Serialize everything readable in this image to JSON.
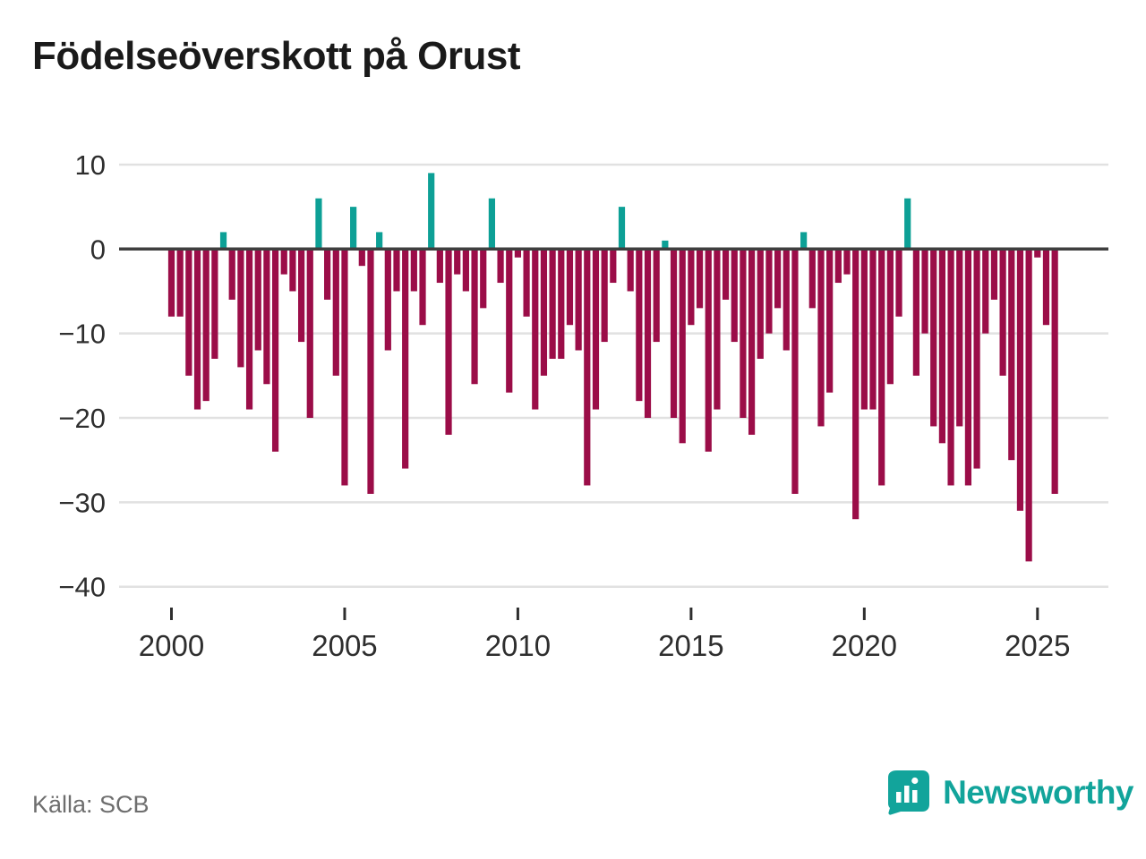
{
  "title": "Födelseöverskott på Orust",
  "source": "Källa: SCB",
  "branding": {
    "name": "Newsworthy",
    "logo_icon": "bar-chart-pin-icon"
  },
  "colors": {
    "negative_bar": "#9b0d48",
    "positive_bar": "#0da096",
    "brand_teal": "#12a49b",
    "grid": "#e1e1e1",
    "zero_line": "#3f3f3f",
    "tick_text": "#2e2e2e"
  },
  "chart_data": {
    "type": "bar",
    "title": "Födelseöverskott på Orust",
    "xlabel": "",
    "ylabel": "",
    "ylim": [
      -40,
      10
    ],
    "grid": "horizontal",
    "legend": "none",
    "unit": "persons per quarter",
    "y_ticks": [
      10,
      0,
      -10,
      -20,
      -30,
      -40
    ],
    "x_ticks": [
      {
        "label": "2000",
        "quarter_index": 0
      },
      {
        "label": "2005",
        "quarter_index": 20
      },
      {
        "label": "2010",
        "quarter_index": 40
      },
      {
        "label": "2015",
        "quarter_index": 60
      },
      {
        "label": "2020",
        "quarter_index": 80
      },
      {
        "label": "2025",
        "quarter_index": 100
      }
    ],
    "series_note": "quarterly values 2000Q1-2025Q3; positive values teal, negative crimson",
    "years": [
      {
        "year": 2000,
        "values": [
          -8,
          -8,
          -15,
          -19
        ]
      },
      {
        "year": 2001,
        "values": [
          -18,
          -13,
          2,
          -6
        ]
      },
      {
        "year": 2002,
        "values": [
          -14,
          -19,
          -12,
          -16
        ]
      },
      {
        "year": 2003,
        "values": [
          -24,
          -3,
          -5,
          -11
        ]
      },
      {
        "year": 2004,
        "values": [
          -20,
          6,
          -6,
          -15
        ]
      },
      {
        "year": 2005,
        "values": [
          -28,
          5,
          -2,
          -29
        ]
      },
      {
        "year": 2006,
        "values": [
          2,
          -12,
          -5,
          -26
        ]
      },
      {
        "year": 2007,
        "values": [
          -5,
          -9,
          9,
          -4
        ]
      },
      {
        "year": 2008,
        "values": [
          -22,
          -3,
          -5,
          -16
        ]
      },
      {
        "year": 2009,
        "values": [
          -7,
          6,
          -4,
          -17
        ]
      },
      {
        "year": 2010,
        "values": [
          -1,
          -8,
          -19,
          -15
        ]
      },
      {
        "year": 2011,
        "values": [
          -13,
          -13,
          -9,
          -12
        ]
      },
      {
        "year": 2012,
        "values": [
          -28,
          -19,
          -11,
          -4
        ]
      },
      {
        "year": 2013,
        "values": [
          5,
          -5,
          -18,
          -20
        ]
      },
      {
        "year": 2014,
        "values": [
          -11,
          1,
          -20,
          -23
        ]
      },
      {
        "year": 2015,
        "values": [
          -9,
          -7,
          -24,
          -19
        ]
      },
      {
        "year": 2016,
        "values": [
          -6,
          -11,
          -20,
          -22
        ]
      },
      {
        "year": 2017,
        "values": [
          -13,
          -10,
          -7,
          -12
        ]
      },
      {
        "year": 2018,
        "values": [
          -29,
          2,
          -7,
          -21
        ]
      },
      {
        "year": 2019,
        "values": [
          -17,
          -4,
          -3,
          -32
        ]
      },
      {
        "year": 2020,
        "values": [
          -19,
          -19,
          -28,
          -16
        ]
      },
      {
        "year": 2021,
        "values": [
          -8,
          6,
          -15,
          -10
        ]
      },
      {
        "year": 2022,
        "values": [
          -21,
          -23,
          -28,
          -21
        ]
      },
      {
        "year": 2023,
        "values": [
          -28,
          -26,
          -10,
          -6
        ]
      },
      {
        "year": 2024,
        "values": [
          -15,
          -25,
          -31,
          -37
        ]
      },
      {
        "year": 2025,
        "values": [
          -1,
          -9,
          -29
        ]
      }
    ]
  }
}
